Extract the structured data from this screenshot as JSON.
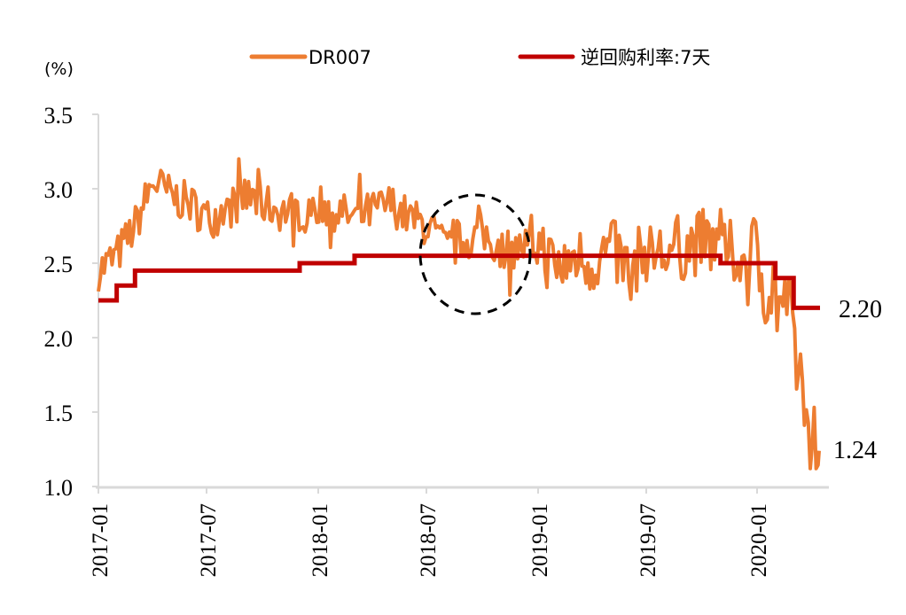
{
  "chart_data": {
    "type": "line",
    "title": "",
    "xlabel": "",
    "ylabel": "(%)",
    "ylim": [
      1.0,
      3.5
    ],
    "yticks": [
      "3.5",
      "3.0",
      "2.5",
      "2.0",
      "1.5",
      "1.0"
    ],
    "xticks": [
      "2017-01",
      "2017-07",
      "2018-01",
      "2018-07",
      "2019-01",
      "2019-07",
      "2020-01"
    ],
    "grid": false,
    "legend_position": "top",
    "series": [
      {
        "name": "DR007",
        "color": "#ED7D31",
        "x": [
          "2017-01",
          "2017-02",
          "2017-03",
          "2017-04",
          "2017-05",
          "2017-06",
          "2017-07",
          "2017-08",
          "2017-09",
          "2017-10",
          "2017-11",
          "2017-12",
          "2018-01",
          "2018-02",
          "2018-03",
          "2018-04",
          "2018-05",
          "2018-06",
          "2018-07",
          "2018-08",
          "2018-09",
          "2018-10",
          "2018-11",
          "2018-12",
          "2019-01",
          "2019-02",
          "2019-03",
          "2019-04",
          "2019-05",
          "2019-06",
          "2019-07",
          "2019-08",
          "2019-09",
          "2019-10",
          "2019-11",
          "2019-12",
          "2020-01",
          "2020-02",
          "2020-03",
          "2020-04"
        ],
        "values": [
          2.45,
          2.55,
          2.75,
          3.05,
          2.95,
          2.9,
          2.8,
          2.85,
          2.95,
          2.9,
          2.85,
          2.85,
          2.9,
          2.85,
          2.8,
          2.85,
          2.9,
          2.8,
          2.75,
          2.6,
          2.65,
          2.7,
          2.6,
          2.6,
          2.65,
          2.45,
          2.55,
          2.5,
          2.6,
          2.45,
          2.6,
          2.55,
          2.6,
          2.65,
          2.6,
          2.55,
          2.5,
          2.3,
          2.0,
          1.24
        ]
      },
      {
        "name": "逆回购利率:7天",
        "color": "#C00000",
        "x": [
          "2017-01",
          "2017-02",
          "2017-03",
          "2017-12",
          "2018-03",
          "2019-11",
          "2020-02",
          "2020-03",
          "2020-04"
        ],
        "values": [
          2.25,
          2.35,
          2.45,
          2.5,
          2.55,
          2.5,
          2.4,
          2.2,
          2.2
        ]
      }
    ],
    "annotations": [
      {
        "text": "2.20",
        "target": "逆回购利率:7天 latest"
      },
      {
        "text": "1.24",
        "target": "DR007 latest"
      },
      {
        "shape": "dashed-circle",
        "period": "2018-07 to 2018-12"
      }
    ]
  },
  "legend": {
    "dr007": "DR007",
    "reverse_repo": "逆回购利率:7天"
  },
  "axis": {
    "unit": "(%)",
    "y": [
      "3.5",
      "3.0",
      "2.5",
      "2.0",
      "1.5",
      "1.0"
    ],
    "x": [
      "2017-01",
      "2017-07",
      "2018-01",
      "2018-07",
      "2019-01",
      "2019-07",
      "2020-01"
    ]
  },
  "annotations": {
    "rr_last": "2.20",
    "dr_last": "1.24"
  },
  "colors": {
    "dr007": "#ED7D31",
    "reverse_repo": "#C00000",
    "axis": "#D9D9D9"
  }
}
